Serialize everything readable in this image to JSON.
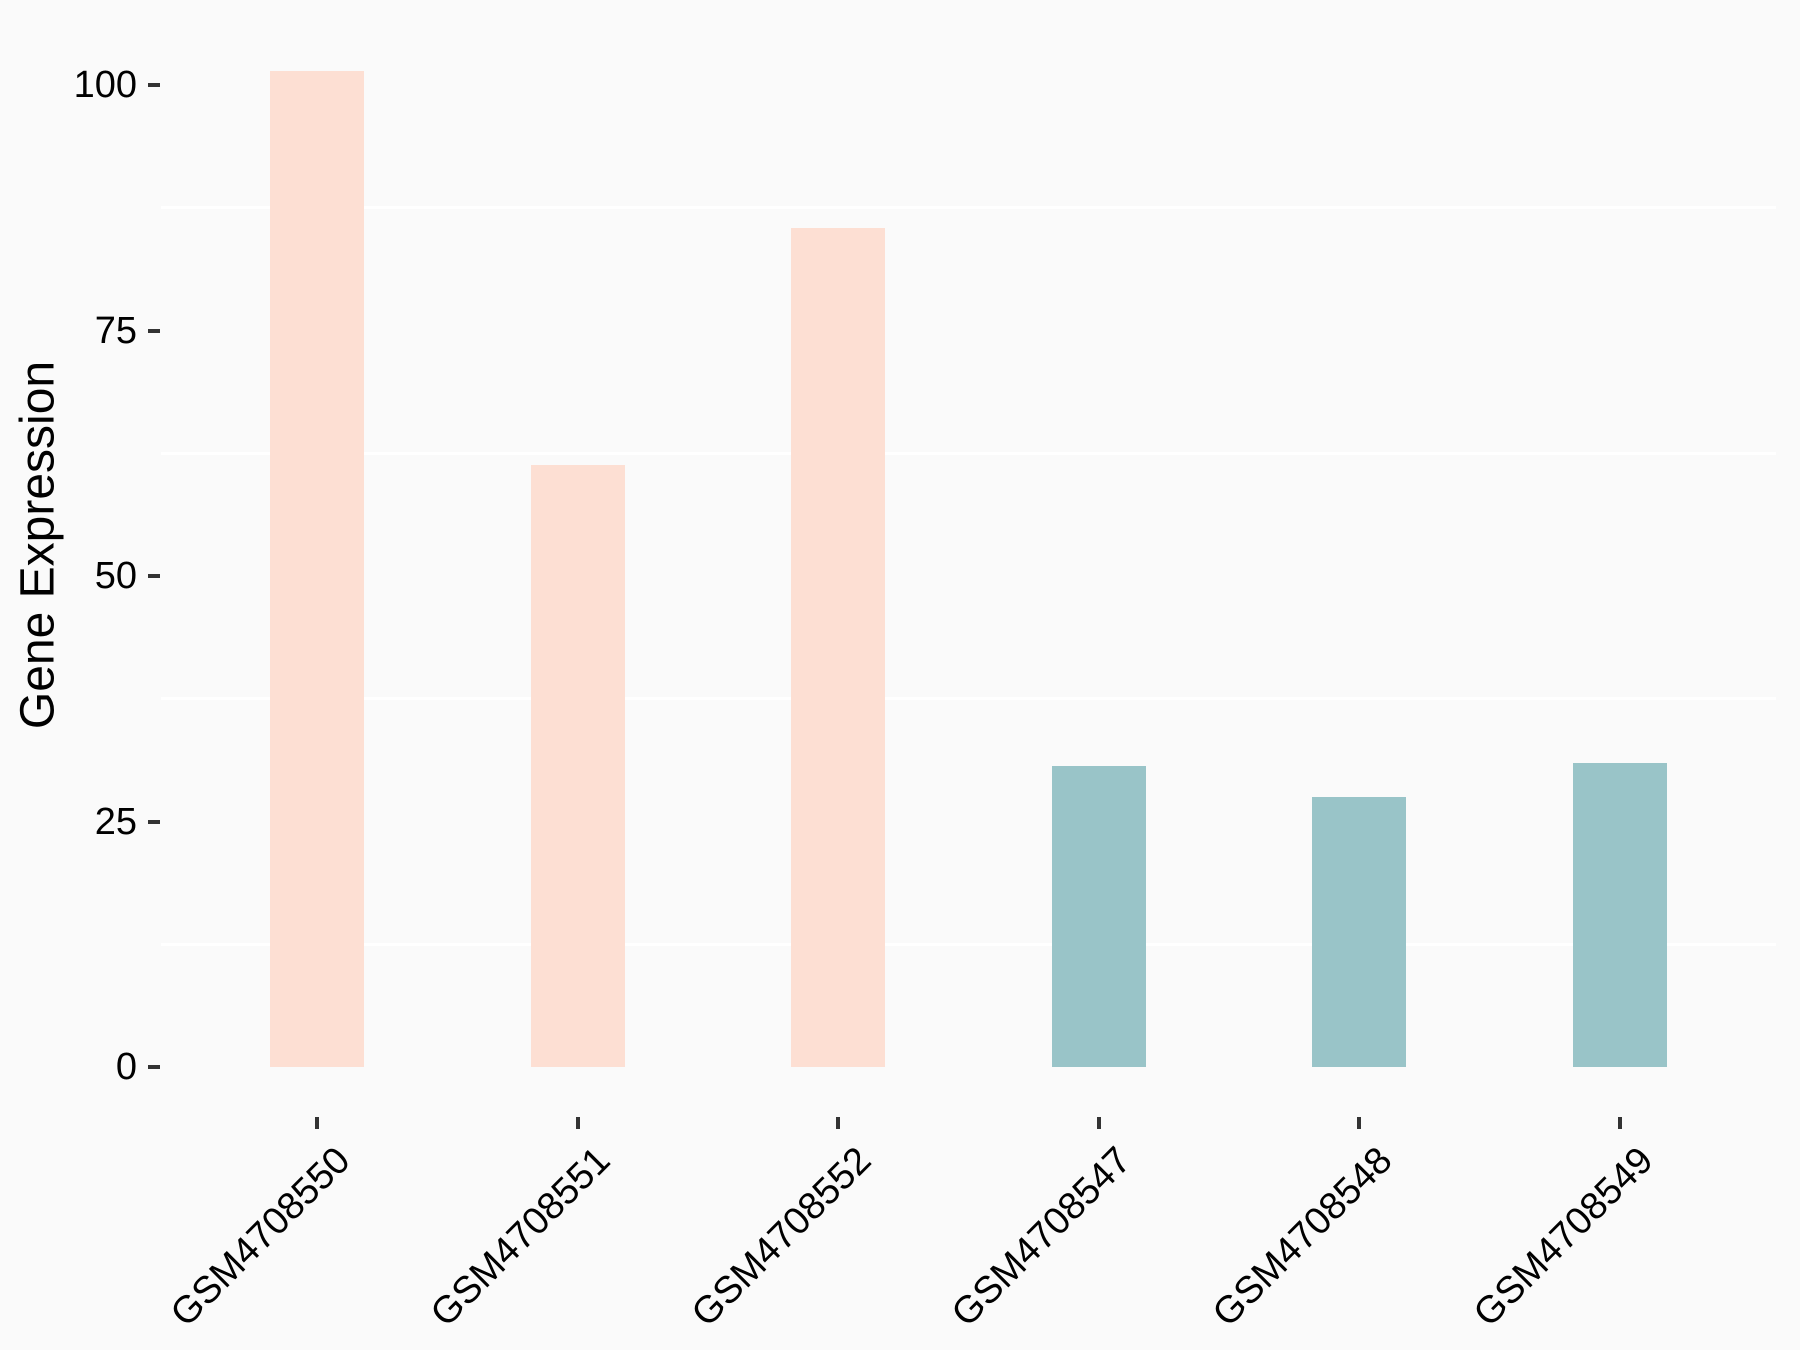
{
  "chart_data": {
    "type": "bar",
    "title": "",
    "xlabel": "",
    "ylabel": "Gene Expression",
    "categories": [
      "GSM4708550",
      "GSM4708551",
      "GSM4708552",
      "GSM4708547",
      "GSM4708548",
      "GSM4708549"
    ],
    "values": [
      101.4,
      61.3,
      85.4,
      30.7,
      27.5,
      31.0
    ],
    "bar_colors": [
      "#fddfd3",
      "#fddfd3",
      "#fddfd3",
      "#99c4c8",
      "#99c4c8",
      "#99c4c8"
    ],
    "groups": [
      "pink",
      "pink",
      "pink",
      "teal",
      "teal",
      "teal"
    ],
    "yticks": [
      0,
      25,
      50,
      75,
      100
    ],
    "minor_gridlines": [
      12.5,
      37.5,
      62.5,
      87.5
    ],
    "ylim": [
      0,
      105
    ],
    "grid": "horizontal-minor-only",
    "legend": "none",
    "colors": {
      "background": "#fafafa",
      "gridline": "#ffffff",
      "tick": "#333333",
      "text": "#000000",
      "bar_pink": "#fddfd3",
      "bar_teal": "#99c4c8"
    }
  }
}
